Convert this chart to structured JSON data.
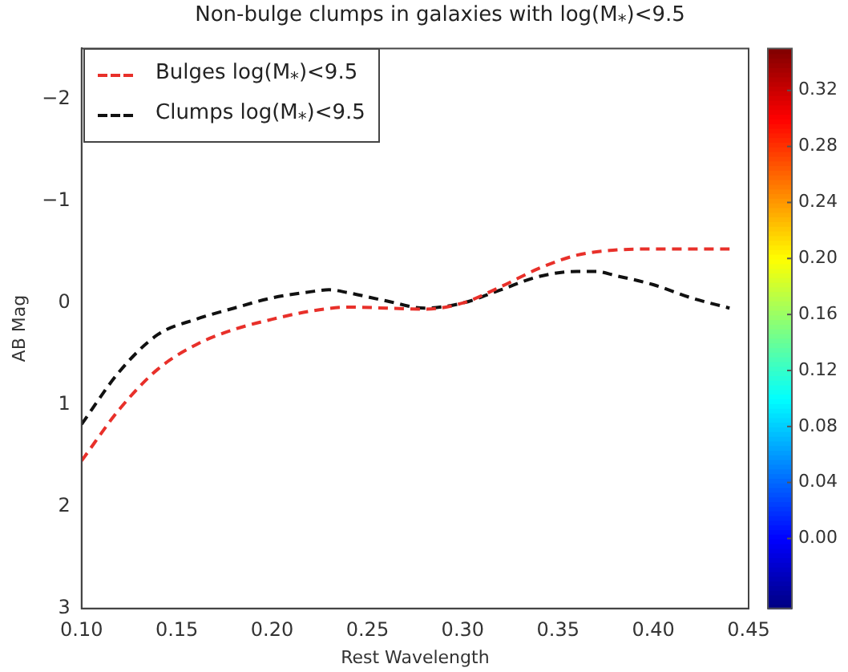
{
  "chart_data": {
    "type": "line",
    "title": "Non-bulge clumps in galaxies with log(M$_{*}$)<9.5",
    "xlabel": "Rest Wavelength",
    "ylabel": "AB Mag",
    "series": [
      {
        "name": "Bulges log(M$_{*}$)<9.5",
        "color": "#e8302a",
        "x": [
          0.1,
          0.12,
          0.14,
          0.16,
          0.18,
          0.2,
          0.22,
          0.24,
          0.26,
          0.28,
          0.3,
          0.32,
          0.34,
          0.36,
          0.38,
          0.4,
          0.42,
          0.44
        ],
        "values": [
          1.55,
          1.04,
          0.65,
          0.41,
          0.26,
          0.16,
          0.08,
          0.04,
          0.05,
          0.06,
          0,
          -0.16,
          -0.34,
          -0.47,
          -0.52,
          -0.53,
          -0.53,
          -0.53
        ]
      },
      {
        "name": "Clumps log(M$_{*}$)<9.5",
        "color": "#111111",
        "x": [
          0.1,
          0.12,
          0.14,
          0.16,
          0.18,
          0.2,
          0.22,
          0.23,
          0.24,
          0.26,
          0.28,
          0.3,
          0.32,
          0.34,
          0.36,
          0.37,
          0.38,
          0.4,
          0.42,
          0.44
        ],
        "values": [
          1.19,
          0.67,
          0.31,
          0.16,
          0.05,
          -0.05,
          -0.11,
          -0.13,
          -0.1,
          -0.02,
          0.05,
          0,
          -0.13,
          -0.26,
          -0.31,
          -0.31,
          -0.27,
          -0.18,
          -0.05,
          0.05
        ]
      }
    ],
    "xlim": [
      0.1,
      0.45
    ],
    "xticks": [
      {
        "value": 0.1,
        "label": "0.10"
      },
      {
        "value": 0.15,
        "label": "0.15"
      },
      {
        "value": 0.2,
        "label": "0.20"
      },
      {
        "value": 0.25,
        "label": "0.25"
      },
      {
        "value": 0.3,
        "label": "0.30"
      },
      {
        "value": 0.35,
        "label": "0.35"
      },
      {
        "value": 0.4,
        "label": "0.40"
      },
      {
        "value": 0.45,
        "label": "0.45"
      }
    ],
    "ylim": [
      3,
      -2.5
    ],
    "yticks": [
      {
        "value": -2,
        "label": "−2"
      },
      {
        "value": -1,
        "label": "−1"
      },
      0,
      1,
      2,
      3
    ],
    "clim": [
      -0.05,
      0.35
    ],
    "cticks": [
      {
        "value": 0,
        "label": "0.00"
      },
      {
        "value": 0.04,
        "label": "0.04"
      },
      {
        "value": 0.08,
        "label": "0.08"
      },
      {
        "value": 0.12,
        "label": "0.12"
      },
      {
        "value": 0.16,
        "label": "0.16"
      },
      {
        "value": 0.2,
        "label": "0.20"
      },
      {
        "value": 0.24,
        "label": "0.24"
      },
      {
        "value": 0.28,
        "label": "0.28"
      },
      {
        "value": 0.32,
        "label": "0.32"
      }
    ],
    "grid": false,
    "legend": "top left",
    "line_style": "dashed",
    "marker": "none"
  }
}
